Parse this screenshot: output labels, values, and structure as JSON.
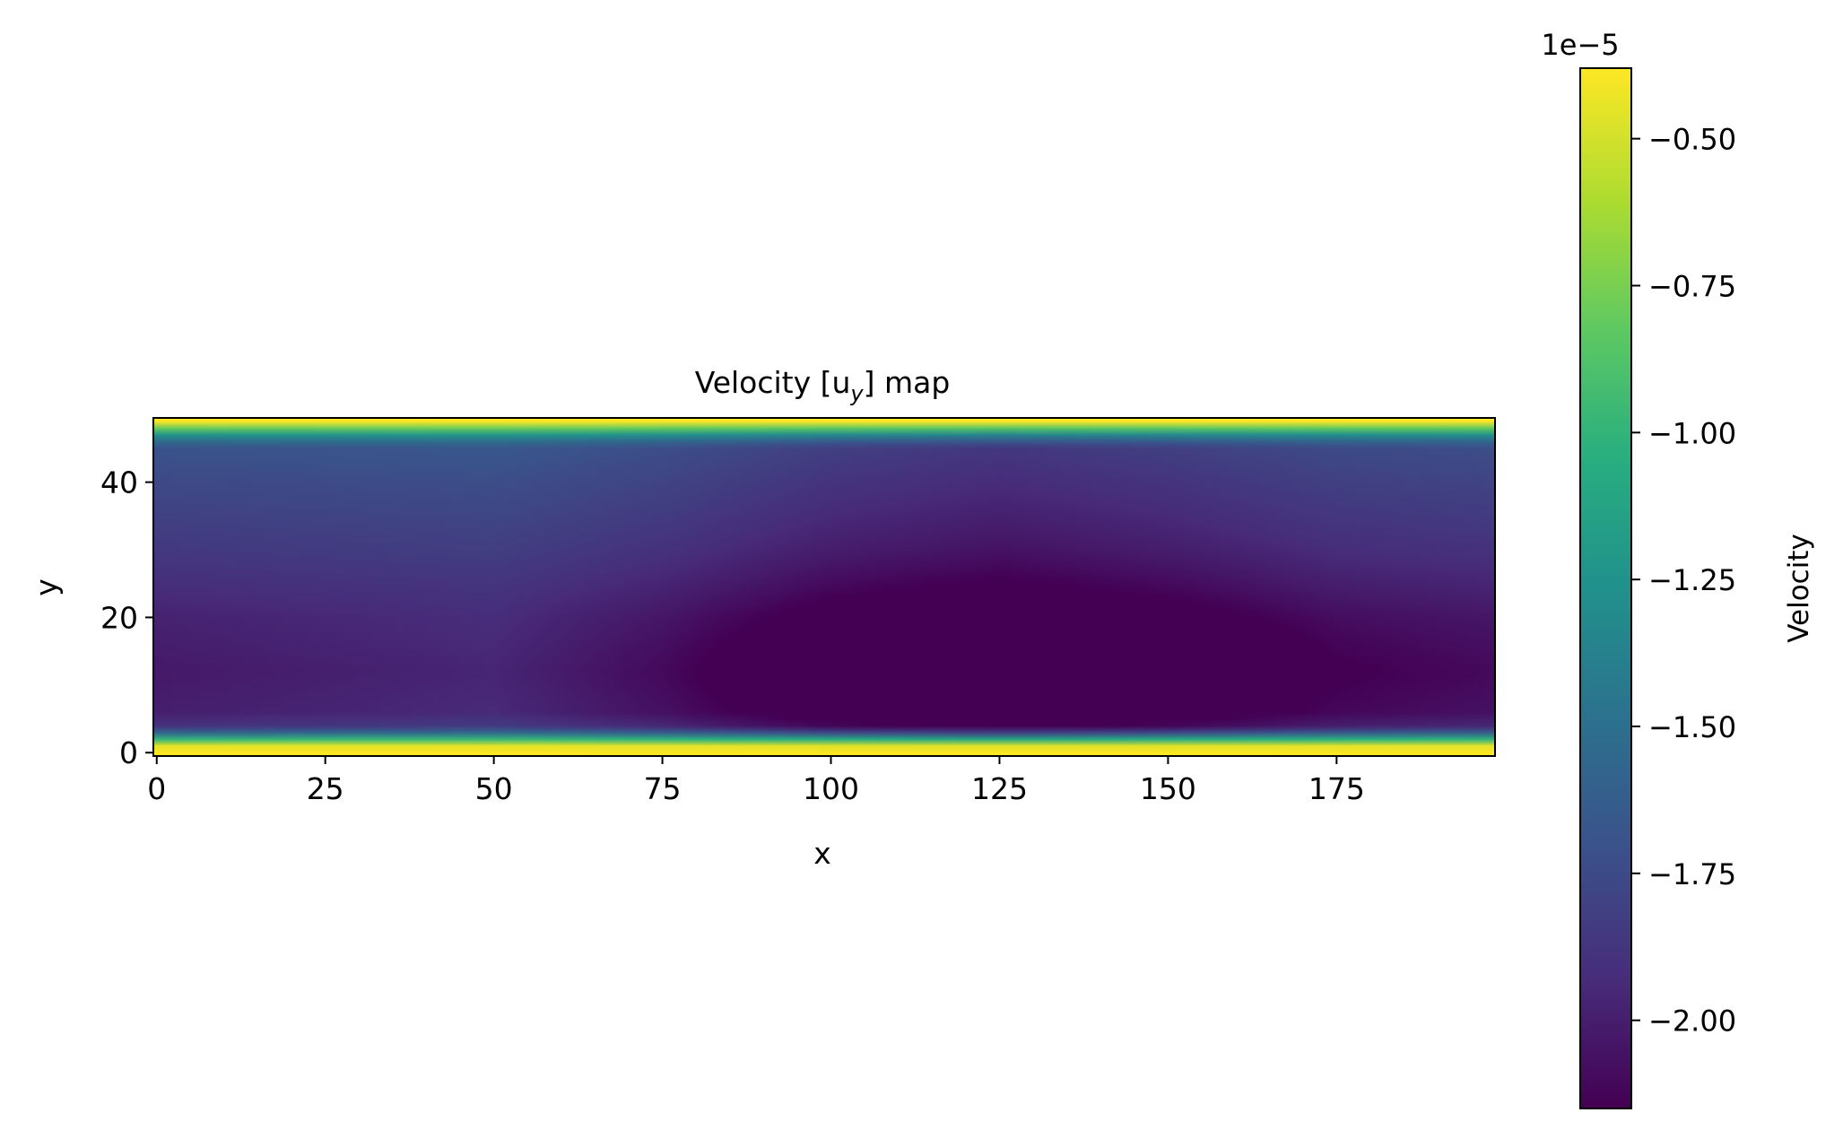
{
  "chart_data": {
    "type": "heatmap",
    "title": {
      "prefix": "Velocity [u",
      "subscript": "y",
      "suffix": "] map"
    },
    "xlabel": "x",
    "ylabel": "y",
    "xlim": [
      -0.5,
      198.5
    ],
    "ylim": [
      -0.5,
      49.5
    ],
    "x_ticks": [
      0,
      25,
      50,
      75,
      100,
      125,
      150,
      175
    ],
    "x_tick_labels": [
      "0",
      "25",
      "50",
      "75",
      "100",
      "125",
      "150",
      "175"
    ],
    "y_ticks": [
      0,
      20,
      40
    ],
    "y_tick_labels": [
      "0",
      "20",
      "40"
    ],
    "grid": {
      "nx": 199,
      "ny": 50
    },
    "field": {
      "description_of_values": "u_y velocity in units of 1e-5",
      "wall_value": -0.38,
      "center_profile_y": [
        [
          0,
          -0.38
        ],
        [
          1,
          -0.45
        ],
        [
          2,
          -1.0
        ],
        [
          3,
          -1.6
        ],
        [
          4,
          -1.9
        ],
        [
          6,
          -2.0
        ],
        [
          12,
          -2.03
        ],
        [
          20,
          -1.98
        ],
        [
          30,
          -1.86
        ],
        [
          40,
          -1.76
        ],
        [
          45,
          -1.7
        ],
        [
          46,
          -1.55
        ],
        [
          47,
          -1.25
        ],
        [
          48,
          -0.8
        ],
        [
          49,
          -0.38
        ]
      ],
      "center_profile_x": [
        [
          0,
          -1.78
        ],
        [
          25,
          -1.75
        ],
        [
          50,
          -1.72
        ],
        [
          75,
          -1.85
        ],
        [
          100,
          -2.05
        ],
        [
          125,
          -2.15
        ],
        [
          150,
          -2.05
        ],
        [
          175,
          -1.9
        ],
        [
          198,
          -1.85
        ]
      ],
      "min_location": {
        "x": 126,
        "y": 12
      },
      "min_value": -2.15
    },
    "colorbar": {
      "label": "Velocity",
      "offset_text": "1e−5",
      "colormap": "viridis",
      "vmin": -2.15,
      "vmax": -0.38,
      "ticks": [
        -0.5,
        -0.75,
        -1.0,
        -1.25,
        -1.5,
        -1.75,
        -2.0
      ],
      "tick_labels": [
        "−0.50",
        "−0.75",
        "−1.00",
        "−1.25",
        "−1.50",
        "−1.75",
        "−2.00"
      ]
    }
  }
}
